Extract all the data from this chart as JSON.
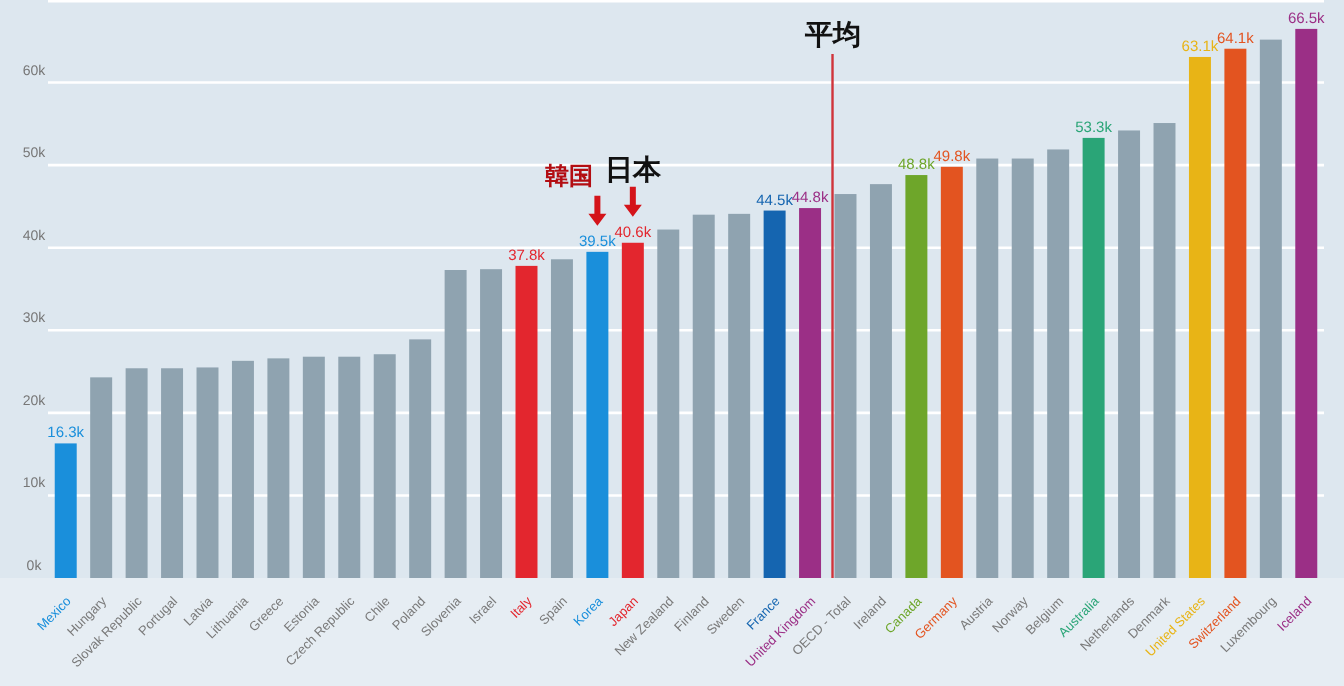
{
  "chart_data": {
    "type": "bar",
    "categories": [
      "Mexico",
      "Hungary",
      "Slovak Republic",
      "Portugal",
      "Latvia",
      "Lithuania",
      "Greece",
      "Estonia",
      "Czech Republic",
      "Chile",
      "Poland",
      "Slovenia",
      "Israel",
      "Italy",
      "Spain",
      "Korea",
      "Japan",
      "New Zealand",
      "Finland",
      "Sweden",
      "France",
      "United Kingdom",
      "OECD - Total",
      "Ireland",
      "Canada",
      "Germany",
      "Austria",
      "Norway",
      "Belgium",
      "Australia",
      "Netherlands",
      "Denmark",
      "United States",
      "Switzerland",
      "Luxembourg",
      "Iceland"
    ],
    "values": [
      16.3,
      24.3,
      25.4,
      25.4,
      25.5,
      26.3,
      26.6,
      26.8,
      26.8,
      27.1,
      28.9,
      37.3,
      37.4,
      37.8,
      38.6,
      39.5,
      40.6,
      42.2,
      44.0,
      44.1,
      44.5,
      44.8,
      46.5,
      47.7,
      48.8,
      49.8,
      50.8,
      50.8,
      51.9,
      53.3,
      54.2,
      55.1,
      63.1,
      64.1,
      65.2,
      66.5
    ],
    "value_labels": [
      "16.3k",
      null,
      null,
      null,
      null,
      null,
      null,
      null,
      null,
      null,
      null,
      null,
      null,
      "37.8k",
      null,
      "39.5k",
      "40.6k",
      null,
      null,
      null,
      "44.5k",
      "44.8k",
      null,
      null,
      "48.8k",
      "49.8k",
      null,
      null,
      null,
      "53.3k",
      null,
      null,
      "63.1k",
      "64.1k",
      null,
      "66.5k"
    ],
    "color": "#8fa3b0",
    "colors": [
      "#1a8fdb",
      "#8fa3b0",
      "#8fa3b0",
      "#8fa3b0",
      "#8fa3b0",
      "#8fa3b0",
      "#8fa3b0",
      "#8fa3b0",
      "#8fa3b0",
      "#8fa3b0",
      "#8fa3b0",
      "#8fa3b0",
      "#8fa3b0",
      "#e3262e",
      "#8fa3b0",
      "#1a8fdb",
      "#e3262e",
      "#8fa3b0",
      "#8fa3b0",
      "#8fa3b0",
      "#1565b0",
      "#9b2f86",
      "#8fa3b0",
      "#8fa3b0",
      "#6ea62a",
      "#e35420",
      "#8fa3b0",
      "#8fa3b0",
      "#8fa3b0",
      "#2aa577",
      "#8fa3b0",
      "#8fa3b0",
      "#e8b416",
      "#e35420",
      "#8fa3b0",
      "#9b2f86"
    ],
    "ylim": [
      0,
      70
    ],
    "yticks": [
      {
        "value": 0,
        "label": "0k"
      },
      {
        "value": 10,
        "label": "10k"
      },
      {
        "value": 20,
        "label": "20k"
      },
      {
        "value": 30,
        "label": "30k"
      },
      {
        "value": 40,
        "label": "40k"
      },
      {
        "value": 50,
        "label": "50k"
      },
      {
        "value": 60,
        "label": "60k"
      }
    ],
    "grid": "y",
    "ref_lines": [
      {
        "axis": "x",
        "value": "OECD - Total",
        "label": "平均",
        "color": "#d0343a"
      }
    ],
    "annotations": [
      {
        "text": "日本",
        "x": "Japan",
        "y": 40.6
      },
      {
        "text": "韓国",
        "x": "Korea",
        "y": 39.5
      }
    ]
  }
}
